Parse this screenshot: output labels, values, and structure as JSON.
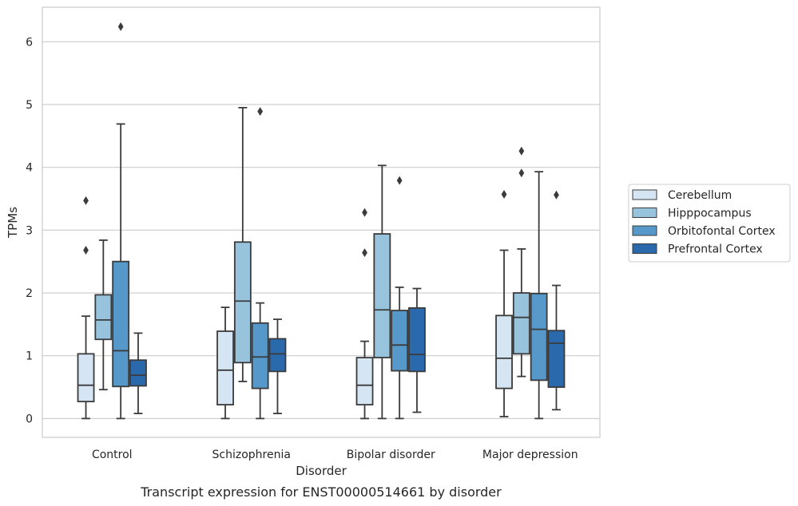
{
  "chart_data": {
    "type": "boxplot",
    "caption": "Transcript expression for ENST00000514661 by disorder",
    "xlabel": "Disorder",
    "ylabel": "TPMs",
    "ylim": [
      -0.3,
      6.55
    ],
    "yticks": [
      0,
      1,
      2,
      3,
      4,
      5,
      6
    ],
    "grid": "horizontal",
    "legend_position": "right",
    "categories": [
      "Control",
      "Schizophrenia",
      "Bipolar disorder",
      "Major depression"
    ],
    "series": [
      {
        "name": "Cerebellum",
        "color": "#d6e5f3",
        "boxes": [
          {
            "whislo": 0.0,
            "q1": 0.27,
            "med": 0.53,
            "q3": 1.03,
            "whishi": 1.63,
            "fliers": [
              2.68,
              3.47
            ]
          },
          {
            "whislo": 0.0,
            "q1": 0.22,
            "med": 0.77,
            "q3": 1.39,
            "whishi": 1.77,
            "fliers": []
          },
          {
            "whislo": 0.0,
            "q1": 0.22,
            "med": 0.53,
            "q3": 0.97,
            "whishi": 1.23,
            "fliers": [
              2.64,
              3.28
            ]
          },
          {
            "whislo": 0.03,
            "q1": 0.48,
            "med": 0.96,
            "q3": 1.64,
            "whishi": 2.68,
            "fliers": [
              3.57
            ]
          }
        ]
      },
      {
        "name": "Hipppocampus",
        "color": "#98c3dd",
        "boxes": [
          {
            "whislo": 0.46,
            "q1": 1.26,
            "med": 1.57,
            "q3": 1.97,
            "whishi": 2.84,
            "fliers": []
          },
          {
            "whislo": 0.59,
            "q1": 0.89,
            "med": 1.87,
            "q3": 2.81,
            "whishi": 4.95,
            "fliers": []
          },
          {
            "whislo": 0.0,
            "q1": 0.97,
            "med": 1.73,
            "q3": 2.94,
            "whishi": 4.03,
            "fliers": []
          },
          {
            "whislo": 0.67,
            "q1": 1.03,
            "med": 1.61,
            "q3": 2.0,
            "whishi": 2.7,
            "fliers": [
              3.91,
              4.26
            ]
          }
        ]
      },
      {
        "name": "Orbitofontal Cortex",
        "color": "#5598c9",
        "boxes": [
          {
            "whislo": 0.0,
            "q1": 0.51,
            "med": 1.08,
            "q3": 2.5,
            "whishi": 4.69,
            "fliers": [
              6.24
            ]
          },
          {
            "whislo": 0.0,
            "q1": 0.48,
            "med": 0.98,
            "q3": 1.52,
            "whishi": 1.84,
            "fliers": [
              4.89
            ]
          },
          {
            "whislo": 0.0,
            "q1": 0.76,
            "med": 1.17,
            "q3": 1.72,
            "whishi": 2.09,
            "fliers": [
              3.79
            ]
          },
          {
            "whislo": 0.0,
            "q1": 0.61,
            "med": 1.42,
            "q3": 1.99,
            "whishi": 3.93,
            "fliers": []
          }
        ]
      },
      {
        "name": "Prefrontal Cortex",
        "color": "#2a69ab",
        "boxes": [
          {
            "whislo": 0.08,
            "q1": 0.52,
            "med": 0.69,
            "q3": 0.93,
            "whishi": 1.36,
            "fliers": []
          },
          {
            "whislo": 0.08,
            "q1": 0.75,
            "med": 1.03,
            "q3": 1.27,
            "whishi": 1.58,
            "fliers": []
          },
          {
            "whislo": 0.1,
            "q1": 0.75,
            "med": 1.02,
            "q3": 1.76,
            "whishi": 2.07,
            "fliers": []
          },
          {
            "whislo": 0.14,
            "q1": 0.5,
            "med": 1.2,
            "q3": 1.4,
            "whishi": 2.12,
            "fliers": [
              3.56
            ]
          }
        ]
      }
    ]
  }
}
